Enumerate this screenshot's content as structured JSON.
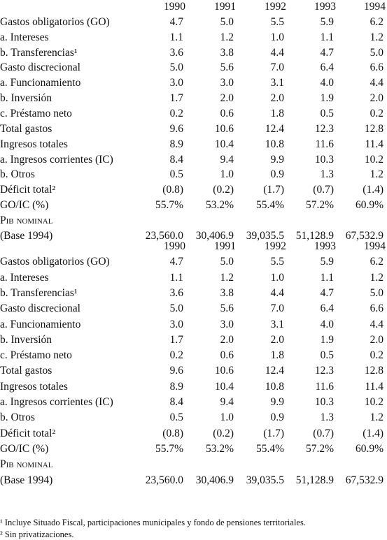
{
  "tables": [
    {
      "header": [
        "1990",
        "1991",
        "1992",
        "1993",
        "1994"
      ],
      "rows": [
        {
          "label": "Gastos obligatorios (GO)",
          "cells": [
            "4.7",
            "5.0",
            "5.5",
            "5.9",
            "6.2"
          ]
        },
        {
          "label": "a. Intereses",
          "cells": [
            "1.1",
            "1.2",
            "1.0",
            "1.1",
            "1.2"
          ]
        },
        {
          "label": "b. Transferencias¹",
          "cells": [
            "3.6",
            "3.8",
            "4.4",
            "4.7",
            "5.0"
          ]
        },
        {
          "label": "Gasto discrecional",
          "cells": [
            "5.0",
            "5.6",
            "7.0",
            "6.4",
            "6.6"
          ]
        },
        {
          "label": "a. Funcionamiento",
          "cells": [
            "3.0",
            "3.0",
            "3.1",
            "4.0",
            "4.4"
          ]
        },
        {
          "label": "b. Inversión",
          "cells": [
            "1.7",
            "2.0",
            "2.0",
            "1.9",
            "2.0"
          ]
        },
        {
          "label": "c. Préstamo neto",
          "cells": [
            "0.2",
            "0.6",
            "1.8",
            "0.5",
            "0.2"
          ]
        },
        {
          "label": "Total gastos",
          "cells": [
            "9.6",
            "10.6",
            "12.4",
            "12.3",
            "12.8"
          ]
        },
        {
          "label": "Ingresos totales",
          "cells": [
            "8.9",
            "10.4",
            "10.8",
            "11.6",
            "11.4"
          ]
        },
        {
          "label": "a. Ingresos corrientes (IC)",
          "cells": [
            "8.4",
            "9.4",
            "9.9",
            "10.3",
            "10.2"
          ]
        },
        {
          "label": "b. Otros",
          "cells": [
            "0.5",
            "1.0",
            "0.9",
            "1.3",
            "1.2"
          ]
        },
        {
          "label": "Déficit total²",
          "cells": [
            "(0.8)",
            "(0.2)",
            "(1.7)",
            "(0.7)",
            "(1.4)"
          ]
        },
        {
          "label": "GO/IC (%)",
          "cells": [
            "55.7%",
            "53.2%",
            "55.4%",
            "57.2%",
            "60.9%"
          ]
        },
        {
          "label": "Pib nominal"
        },
        {
          "label": "(Base 1994)",
          "cells": [
            "23,560.0",
            "30,406.9",
            "39,035.5",
            "51,128.9",
            "67,532.9"
          ]
        }
      ]
    },
    {
      "header": [
        "1990",
        "1991",
        "1992",
        "1993",
        "1994"
      ],
      "rows": [
        {
          "label": "Gastos obligatorios (GO)",
          "cells": [
            "4.7",
            "5.0",
            "5.5",
            "5.9",
            "6.2"
          ]
        },
        {
          "label": "a. Intereses",
          "cells": [
            "1.1",
            "1.2",
            "1.0",
            "1.1",
            "1.2"
          ]
        },
        {
          "label": "b. Transferencias¹",
          "cells": [
            "3.6",
            "3.8",
            "4.4",
            "4.7",
            "5.0"
          ]
        },
        {
          "label": "Gasto discrecional",
          "cells": [
            "5.0",
            "5.6",
            "7.0",
            "6.4",
            "6.6"
          ]
        },
        {
          "label": "a. Funcionamiento",
          "cells": [
            "3.0",
            "3.0",
            "3.1",
            "4.0",
            "4.4"
          ]
        },
        {
          "label": "b. Inversión",
          "cells": [
            "1.7",
            "2.0",
            "2.0",
            "1.9",
            "2.0"
          ]
        },
        {
          "label": "c. Préstamo neto",
          "cells": [
            "0.2",
            "0.6",
            "1.8",
            "0.5",
            "0.2"
          ]
        },
        {
          "label": "Total gastos",
          "cells": [
            "9.6",
            "10.6",
            "12.4",
            "12.3",
            "12.8"
          ]
        },
        {
          "label": "Ingresos totales",
          "cells": [
            "8.9",
            "10.4",
            "10.8",
            "11.6",
            "11.4"
          ]
        },
        {
          "label": "a. Ingresos corrientes (IC)",
          "cells": [
            "8.4",
            "9.4",
            "9.9",
            "10.3",
            "10.2"
          ]
        },
        {
          "label": "b. Otros",
          "cells": [
            "0.5",
            "1.0",
            "0.9",
            "1.3",
            "1.2"
          ]
        },
        {
          "label": "Déficit total²",
          "cells": [
            "(0.8)",
            "(0.2)",
            "(1.7)",
            "(0.7)",
            "(1.4)"
          ]
        },
        {
          "label": "GO/IC (%)",
          "cells": [
            "55.7%",
            "53.2%",
            "55.4%",
            "57.2%",
            "60.9%"
          ]
        },
        {
          "label": "Pib nominal"
        },
        {
          "label": "(Base 1994)",
          "cells": [
            "23,560.0",
            "30,406.9",
            "39,035.5",
            "51,128.9",
            "67,532.9"
          ]
        }
      ]
    }
  ],
  "footnotes": [
    "¹ Incluye Situado Fiscal, participaciones municipales y fondo de pensiones territoriales.",
    "² Sin privatizaciones."
  ]
}
